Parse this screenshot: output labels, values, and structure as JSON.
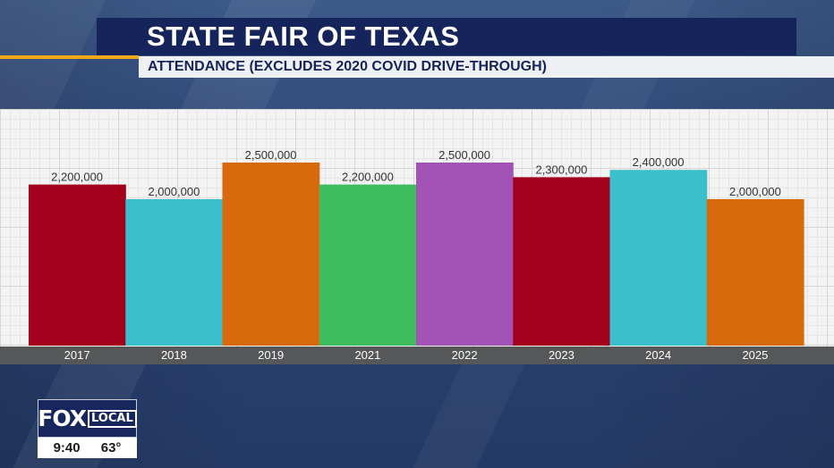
{
  "header": {
    "title": "STATE FAIR OF TEXAS",
    "subtitle": "ATTENDANCE (EXCLUDES 2020 COVID DRIVE-THROUGH)"
  },
  "chart_data": {
    "type": "bar",
    "title": "STATE FAIR OF TEXAS",
    "subtitle": "ATTENDANCE (EXCLUDES 2020 COVID DRIVE-THROUGH)",
    "xlabel": "",
    "ylabel": "",
    "categories": [
      "2017",
      "2018",
      "2019",
      "2021",
      "2022",
      "2023",
      "2024",
      "2025"
    ],
    "values": [
      2200000,
      2000000,
      2500000,
      2200000,
      2500000,
      2300000,
      2400000,
      2000000
    ],
    "data_labels": [
      "2,200,000",
      "2,000,000",
      "2,500,000",
      "2,200,000",
      "2,500,000",
      "2,300,000",
      "2,400,000",
      "2,000,000"
    ],
    "colors": [
      "#a3001c",
      "#3bbfcc",
      "#d86a0e",
      "#3dbd5e",
      "#a253b5",
      "#a3001c",
      "#3bbfcc",
      "#d86a0e"
    ],
    "ylim": [
      0,
      2500000
    ],
    "grid": true,
    "legend": "none"
  },
  "logo": {
    "brand": "FOX",
    "sub": "LOCAL",
    "time": "9:40",
    "temperature": "63°"
  }
}
